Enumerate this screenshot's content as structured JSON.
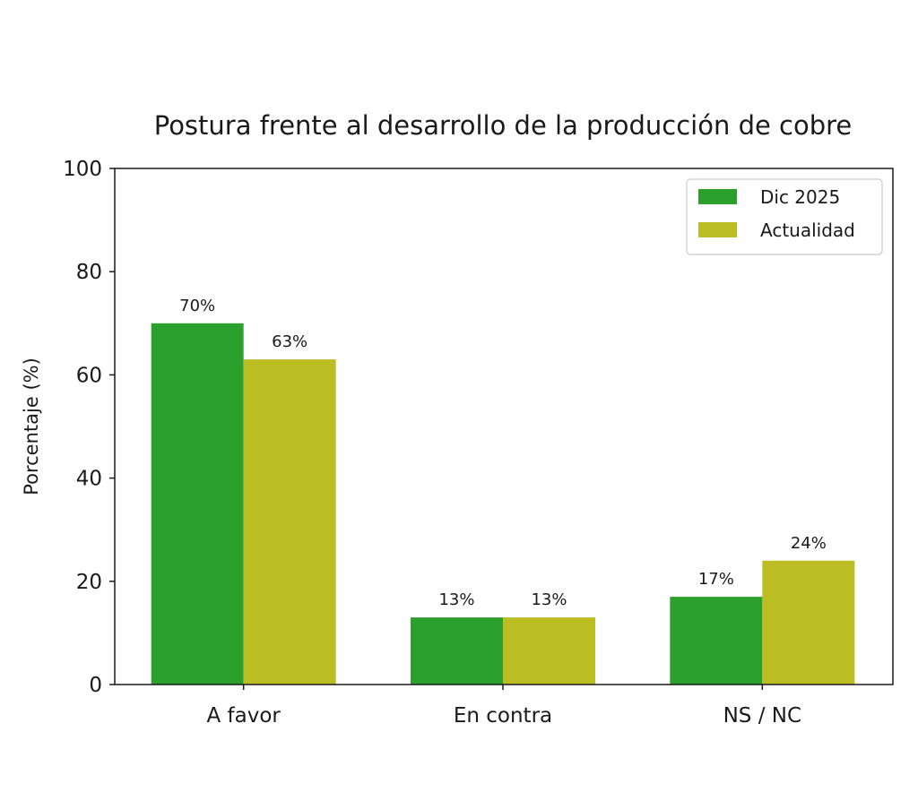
{
  "chart_data": {
    "type": "bar",
    "title": "Postura frente al desarrollo de la producción de cobre",
    "xlabel": "",
    "ylabel": "Porcentaje (%)",
    "ylim": [
      0,
      100
    ],
    "yticks": [
      0,
      20,
      40,
      60,
      80,
      100
    ],
    "categories": [
      "A favor",
      "En contra",
      "NS / NC"
    ],
    "series": [
      {
        "name": "Dic 2025",
        "values": [
          70,
          13,
          17
        ],
        "labels": [
          "70%",
          "13%",
          "17%"
        ],
        "color": "#2ca02c"
      },
      {
        "name": "Actualidad",
        "values": [
          63,
          13,
          24
        ],
        "labels": [
          "63%",
          "13%",
          "24%"
        ],
        "color": "#bcbd22"
      }
    ],
    "legend_position": "top-right",
    "grid": false
  }
}
